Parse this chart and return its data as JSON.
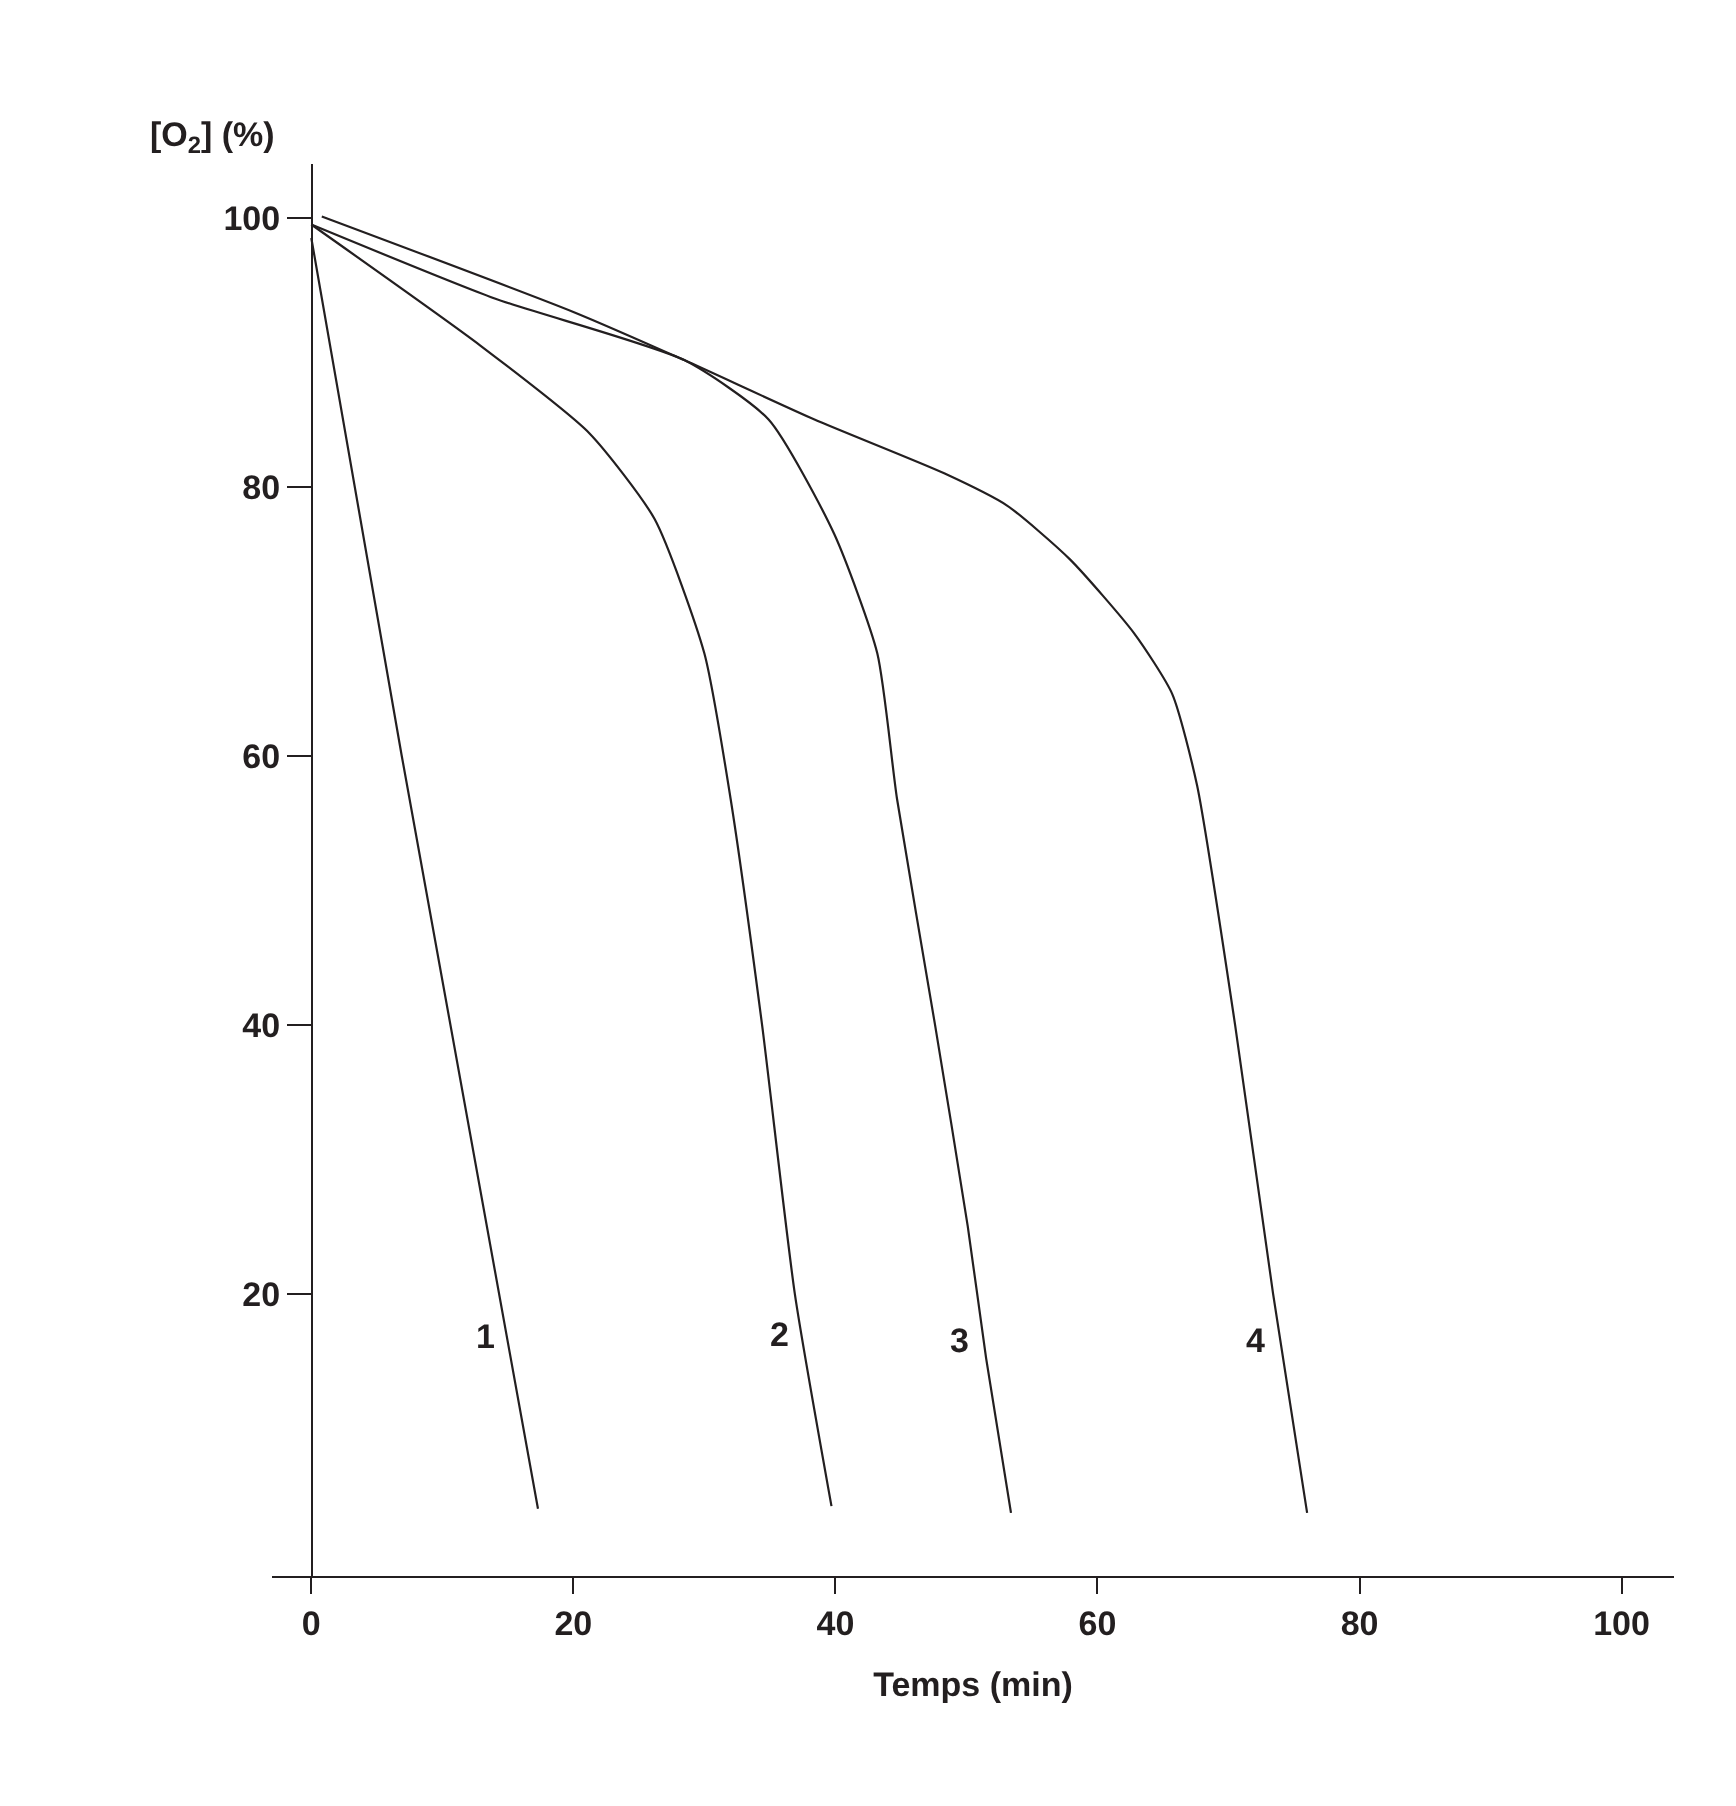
{
  "chart_data": {
    "type": "line",
    "xlabel": "Temps (min)",
    "ylabel": "[O$_{2}$] (%)",
    "xlim": [
      -3,
      104
    ],
    "ylim": [
      -1,
      104
    ],
    "xticks": [
      0,
      20,
      40,
      60,
      80,
      100
    ],
    "yticks": [
      20,
      40,
      60,
      80,
      100
    ],
    "legend": false,
    "marker": "none",
    "line_style": "solid",
    "series": [
      {
        "name": "1",
        "color": "#231f20",
        "x": [
          0,
          6.9,
          17.3
        ],
        "values": [
          98.5,
          60,
          4
        ]
      },
      {
        "name": "2",
        "color": "#231f20",
        "x": [
          0,
          12.9,
          21.2,
          26.2,
          30,
          32,
          34.4,
          36.9,
          39.7
        ],
        "values": [
          99.5,
          90.5,
          84,
          77.6,
          67.6,
          56.8,
          40,
          20,
          4.2
        ]
      },
      {
        "name": "3",
        "color": "#231f20",
        "x": [
          0,
          14,
          28.5,
          34.9,
          39.9,
          43.2,
          44.7,
          47.6,
          50.1,
          51.5,
          53.4
        ],
        "values": [
          99.5,
          94,
          89.4,
          85,
          76.5,
          67.6,
          56.8,
          40,
          25,
          15.2,
          3.7
        ]
      },
      {
        "name": "4",
        "color": "#231f20",
        "x": [
          0.8,
          20,
          28.5,
          38.4,
          48.3,
          53.1,
          57.9,
          62.8,
          65.7,
          67.6,
          70.5,
          73.4,
          76
        ],
        "values": [
          100.1,
          93,
          89.4,
          85,
          81,
          78.6,
          74.6,
          69.1,
          64.6,
          57.8,
          40,
          20,
          3.7
        ]
      }
    ]
  }
}
